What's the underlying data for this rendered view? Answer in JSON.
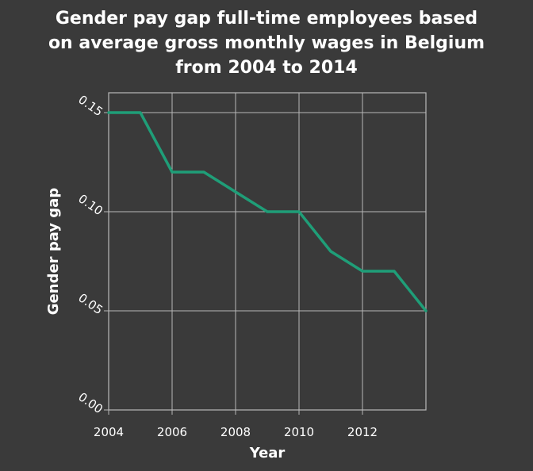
{
  "chart_data": {
    "type": "line",
    "title_lines": [
      "Gender pay gap full-time employees based",
      "on average gross monthly wages in Belgium",
      "from 2004 to 2014"
    ],
    "xlabel": "Year",
    "ylabel": "Gender pay gap",
    "x": [
      2004,
      2005,
      2006,
      2007,
      2008,
      2009,
      2010,
      2011,
      2012,
      2013,
      2014
    ],
    "series": [
      {
        "values": [
          0.15,
          0.15,
          0.12,
          0.12,
          0.11,
          0.1,
          0.1,
          0.08,
          0.07,
          0.07,
          0.05
        ]
      }
    ],
    "xlim": [
      2004,
      2014
    ],
    "ylim": [
      0,
      0.16
    ],
    "x_ticks": [
      2004,
      2006,
      2008,
      2010,
      2012
    ],
    "x_tick_labels": [
      "2004",
      "2006",
      "2008",
      "2010",
      "2012"
    ],
    "y_ticks": [
      0,
      0.05,
      0.1,
      0.15
    ],
    "y_tick_labels": [
      "0.00",
      "0.05",
      "0.10",
      "0.15"
    ],
    "grid": true,
    "colors": {
      "background": "#3a3a3a",
      "line": "#1f9e78",
      "grid": "#b8b8b8",
      "text": "#ffffff"
    }
  }
}
